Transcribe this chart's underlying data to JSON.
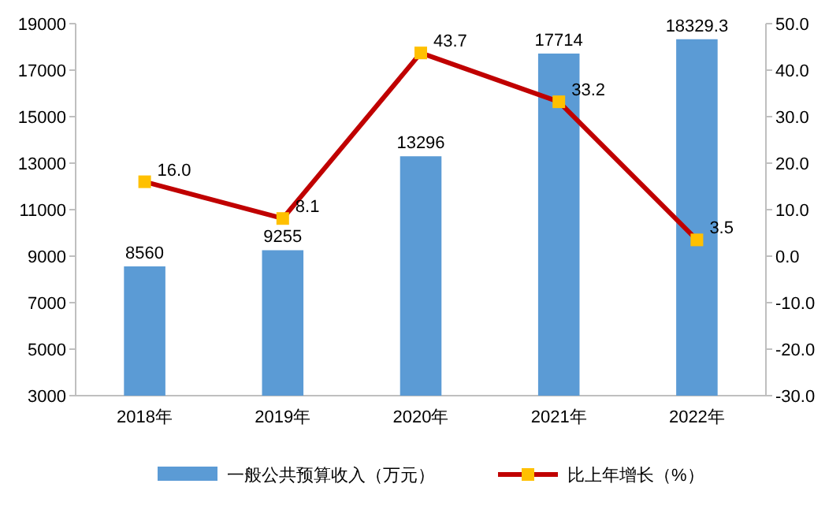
{
  "chart_data": {
    "type": "bar",
    "categories": [
      "2018年",
      "2019年",
      "2020年",
      "2021年",
      "2022年"
    ],
    "series": [
      {
        "name": "一般公共预算收入（万元）",
        "color": "#5b9bd5",
        "values": [
          8560,
          9255,
          13296,
          17714,
          18329.3
        ],
        "value_labels": [
          "8560",
          "9255",
          "13296",
          "17714",
          "18329.3"
        ]
      },
      {
        "name": "比上年增长（%）",
        "type": "line",
        "axis": "y2",
        "color": "#c00000",
        "colors": [
          "#ffc000",
          "#ffc000",
          "#ffc000",
          "#ffc000",
          "#ffc000"
        ],
        "values": [
          16.0,
          8.1,
          43.7,
          33.2,
          3.5
        ],
        "value_labels": [
          "16.0",
          "8.1",
          "43.7",
          "33.2",
          "3.5"
        ]
      }
    ],
    "ylim": [
      3000,
      19000
    ],
    "yticks": [
      3000,
      5000,
      7000,
      9000,
      11000,
      13000,
      15000,
      17000,
      19000
    ],
    "y2lim": [
      -30,
      50
    ],
    "y2ticks": [
      {
        "value": -30,
        "label": "-30.0"
      },
      {
        "value": -20,
        "label": "-20.0"
      },
      {
        "value": -10,
        "label": "-10.0"
      },
      {
        "value": 0,
        "label": "0.0"
      },
      {
        "value": 10,
        "label": "10.0"
      },
      {
        "value": 20,
        "label": "20.0"
      },
      {
        "value": 30,
        "label": "30.0"
      },
      {
        "value": 40,
        "label": "40.0"
      },
      {
        "value": 50,
        "label": "50.0"
      }
    ],
    "legend": "bottom",
    "marker": "square",
    "line_style": "solid"
  }
}
